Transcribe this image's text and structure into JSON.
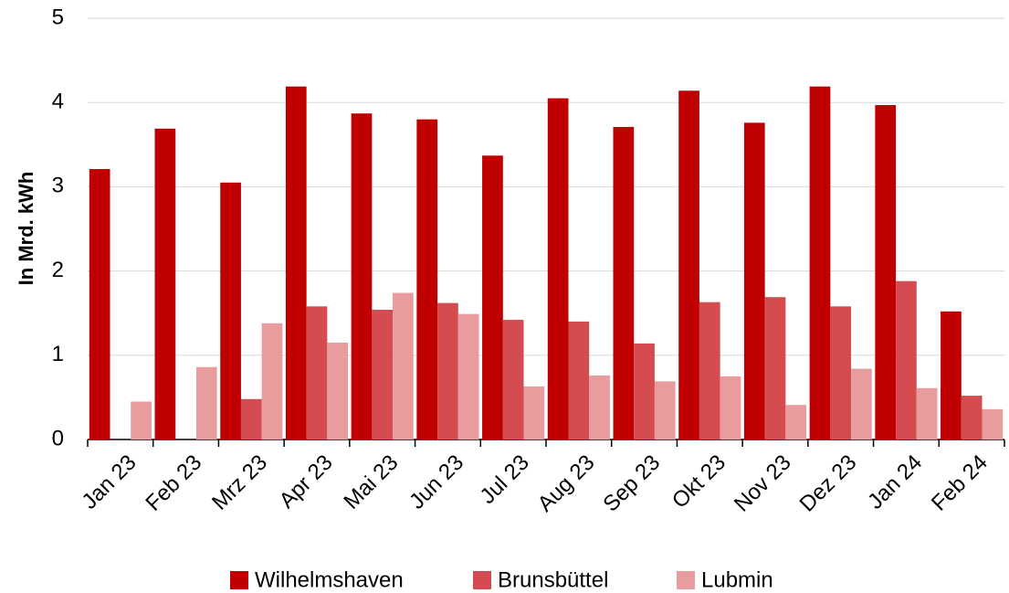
{
  "chart_data": {
    "type": "bar",
    "y_label": "In Mrd. kWh",
    "categories": [
      "Jan 23",
      "Feb 23",
      "Mrz 23",
      "Apr 23",
      "Mai 23",
      "Jun 23",
      "Jul 23",
      "Aug 23",
      "Sep 23",
      "Okt 23",
      "Nov 23",
      "Dez 23",
      "Jan 24",
      "Feb 24"
    ],
    "series": [
      {
        "name": "Wilhelmshaven",
        "color": "#c00000",
        "values": [
          3.21,
          3.69,
          3.05,
          4.19,
          3.87,
          3.8,
          3.37,
          4.05,
          3.71,
          4.14,
          3.76,
          4.19,
          3.97,
          1.52
        ]
      },
      {
        "name": "Brunsbüttel",
        "color": "#d44c50",
        "values": [
          null,
          null,
          0.48,
          1.58,
          1.54,
          1.62,
          1.42,
          1.4,
          1.14,
          1.63,
          1.69,
          1.58,
          1.88,
          0.52
        ]
      },
      {
        "name": "Lubmin",
        "color": "#e89c9e",
        "values": [
          0.45,
          0.86,
          1.38,
          1.15,
          1.74,
          1.49,
          0.63,
          0.76,
          0.69,
          0.75,
          0.41,
          0.84,
          0.61,
          0.36
        ]
      }
    ],
    "ylim": [
      0,
      5
    ],
    "yticks": [
      0,
      1,
      2,
      3,
      4,
      5
    ],
    "grid": true,
    "legend": "bottom"
  }
}
